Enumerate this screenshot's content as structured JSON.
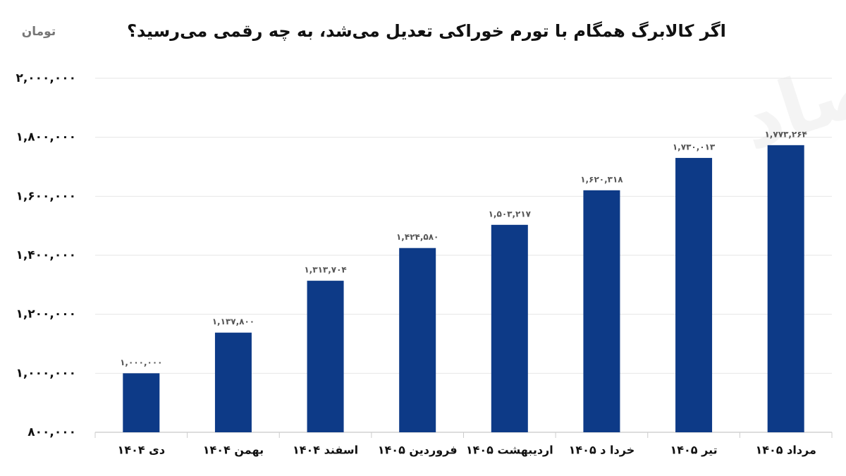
{
  "chart_data": {
    "type": "bar",
    "title": "اگر کالابرگ همگام با تورم خوراکی تعدیل می‌شد، به چه رقمی می‌رسید؟",
    "unit_label": "تومان",
    "watermark": "دنیای اقتصاد",
    "categories": [
      "دی ۱۴۰۴",
      "بهمن ۱۴۰۴",
      "اسفند ۱۴۰۴",
      "فروردین ۱۴۰۵",
      "اردیبهشت ۱۴۰۵",
      "خردا د ۱۴۰۵",
      "تیر ۱۴۰۵",
      "مرداد ۱۴۰۵"
    ],
    "values": [
      1000000,
      1137800,
      1313704,
      1424580,
      1503217,
      1620318,
      1730013,
      1773264
    ],
    "value_labels": [
      "۱,۰۰۰,۰۰۰",
      "۱,۱۳۷,۸۰۰",
      "۱,۳۱۳,۷۰۴",
      "۱,۴۲۴,۵۸۰",
      "۱,۵۰۳,۲۱۷",
      "۱,۶۲۰,۳۱۸",
      "۱,۷۳۰,۰۱۳",
      "۱,۷۷۳,۲۶۴"
    ],
    "color": "#0d3a87",
    "ylim": [
      800000,
      2000000
    ],
    "yticks": [
      {
        "value": 800000,
        "label": "۸۰۰,۰۰۰"
      },
      {
        "value": 1000000,
        "label": "۱,۰۰۰,۰۰۰"
      },
      {
        "value": 1200000,
        "label": "۱,۲۰۰,۰۰۰"
      },
      {
        "value": 1400000,
        "label": "۱,۴۰۰,۰۰۰"
      },
      {
        "value": 1600000,
        "label": "۱,۶۰۰,۰۰۰"
      },
      {
        "value": 1800000,
        "label": "۱,۸۰۰,۰۰۰"
      },
      {
        "value": 2000000,
        "label": "۲,۰۰۰,۰۰۰"
      }
    ],
    "grid": true
  }
}
